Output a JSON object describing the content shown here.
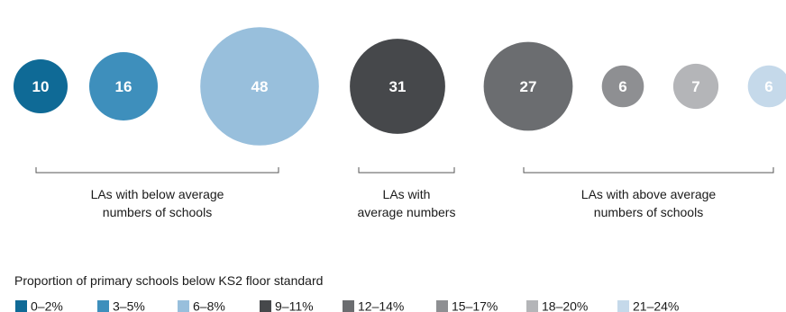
{
  "chart_data": {
    "type": "bubble",
    "bubbles": [
      {
        "value": 10,
        "category": "0–2%",
        "color": "#0f6a96"
      },
      {
        "value": 16,
        "category": "3–5%",
        "color": "#3e8fbc"
      },
      {
        "value": 48,
        "category": "6–8%",
        "color": "#98bfdc"
      },
      {
        "value": 31,
        "category": "9–11%",
        "color": "#46484b"
      },
      {
        "value": 27,
        "category": "12–14%",
        "color": "#6b6d70"
      },
      {
        "value": 6,
        "category": "15–17%",
        "color": "#8e8f92"
      },
      {
        "value": 7,
        "category": "18–20%",
        "color": "#b4b5b8"
      },
      {
        "value": 6,
        "category": "21–24%",
        "color": "#c5d9ea"
      }
    ],
    "groups": [
      {
        "label_lines": [
          "LAs with below average",
          "numbers of schools"
        ],
        "bubble_indices": [
          0,
          1,
          2
        ]
      },
      {
        "label_lines": [
          "LAs with",
          "average numbers"
        ],
        "bubble_indices": [
          3
        ]
      },
      {
        "label_lines": [
          "LAs with above average",
          "numbers of schools"
        ],
        "bubble_indices": [
          4,
          5,
          6,
          7
        ]
      }
    ],
    "legend": {
      "title": "Proportion of primary schools below KS2 floor standard",
      "items": [
        {
          "label": "0–2%",
          "color": "#0f6a96"
        },
        {
          "label": "3–5%",
          "color": "#3e8fbc"
        },
        {
          "label": "6–8%",
          "color": "#98bfdc"
        },
        {
          "label": "9–11%",
          "color": "#46484b"
        },
        {
          "label": "12–14%",
          "color": "#6b6d70"
        },
        {
          "label": "15–17%",
          "color": "#8e8f92"
        },
        {
          "label": "18–20%",
          "color": "#b4b5b8"
        },
        {
          "label": "21–24%",
          "color": "#c5d9ea"
        }
      ]
    }
  }
}
